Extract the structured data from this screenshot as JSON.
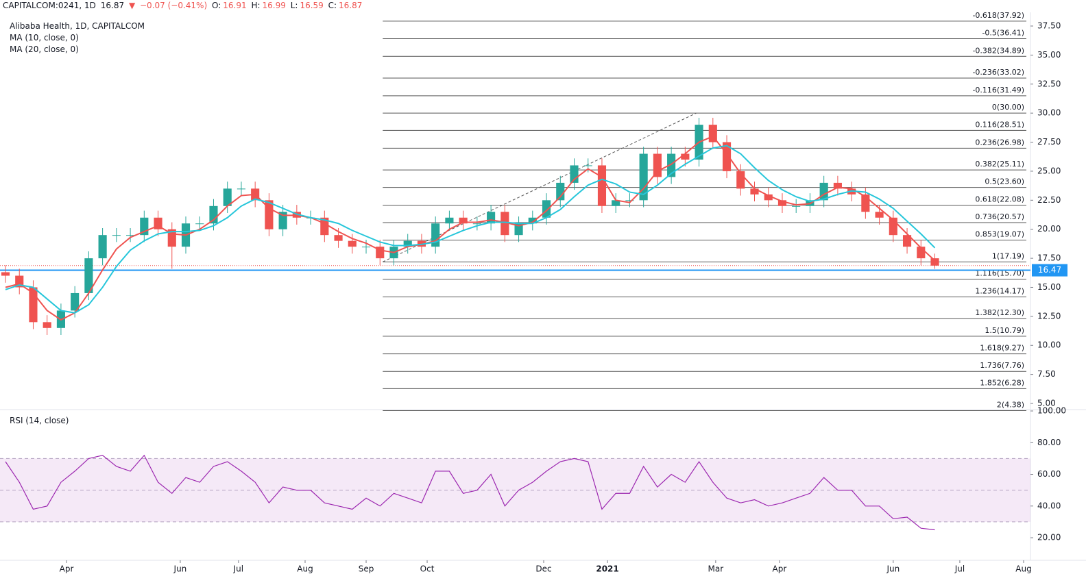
{
  "header": {
    "symbol": "CAPITALCOM:0241, 1D",
    "last": 16.87,
    "arrow": "▼",
    "change": "−0.07 (−0.41%)",
    "o_label": "O:",
    "open": 16.91,
    "h_label": "H:",
    "high": 16.99,
    "l_label": "L:",
    "low": 16.59,
    "c_label": "C:",
    "close": 16.87
  },
  "chart_data": [
    {
      "type": "candlestick",
      "title": "Alibaba Health, 1D, CAPITALCOM",
      "x": [
        0,
        5,
        10,
        15,
        20,
        25,
        30,
        35,
        40,
        45,
        50,
        55,
        60,
        65,
        70,
        75,
        80,
        85,
        90,
        95,
        100,
        105,
        110,
        115,
        120,
        125,
        130,
        135,
        140,
        145,
        150,
        155,
        160,
        165,
        170,
        175,
        180,
        185,
        190,
        195,
        200,
        205,
        210,
        215,
        220,
        225,
        230,
        235,
        240,
        245,
        250,
        255,
        260,
        265,
        270,
        275,
        280,
        285,
        290,
        295,
        300,
        305,
        310,
        315,
        320,
        325,
        330,
        335
      ],
      "open": [
        16.3,
        16.0,
        15.0,
        12.0,
        11.5,
        13.0,
        14.5,
        17.5,
        19.5,
        19.5,
        19.5,
        21.0,
        20.0,
        18.5,
        20.5,
        20.5,
        22.0,
        23.5,
        23.5,
        22.5,
        20.0,
        21.5,
        21.0,
        21.0,
        19.5,
        19.0,
        18.5,
        18.5,
        17.5,
        18.5,
        19.0,
        18.5,
        20.5,
        21.0,
        20.5,
        20.5,
        21.5,
        19.5,
        20.5,
        21.0,
        22.5,
        24.0,
        25.5,
        25.5,
        22.0,
        22.5,
        22.5,
        26.5,
        24.5,
        26.5,
        26.0,
        29.0,
        27.5,
        25.0,
        23.5,
        23.0,
        22.5,
        22.0,
        22.0,
        22.5,
        24.0,
        23.5,
        23.0,
        21.5,
        21.0,
        19.5,
        18.5,
        17.5
      ],
      "high": [
        16.9,
        16.6,
        15.6,
        12.6,
        13.6,
        15.1,
        18.1,
        20.1,
        20.1,
        20.1,
        21.6,
        21.6,
        20.6,
        21.1,
        21.1,
        22.6,
        24.1,
        24.1,
        24.1,
        23.1,
        22.1,
        22.1,
        21.6,
        21.6,
        20.1,
        19.6,
        19.1,
        19.1,
        19.1,
        19.6,
        19.6,
        21.1,
        21.6,
        21.6,
        21.1,
        22.1,
        22.1,
        21.1,
        21.6,
        23.1,
        24.6,
        26.1,
        26.1,
        26.1,
        23.1,
        23.1,
        27.1,
        27.1,
        27.1,
        27.1,
        29.6,
        29.6,
        28.1,
        25.6,
        24.1,
        23.6,
        23.1,
        22.6,
        23.1,
        24.6,
        24.6,
        24.1,
        23.6,
        22.1,
        21.6,
        20.1,
        19.1,
        17.9
      ],
      "low": [
        15.4,
        14.4,
        11.4,
        10.9,
        10.9,
        12.4,
        13.9,
        16.9,
        18.9,
        18.9,
        18.9,
        19.4,
        16.6,
        17.9,
        19.9,
        19.9,
        21.4,
        22.9,
        21.9,
        19.4,
        19.4,
        20.4,
        20.4,
        18.9,
        18.4,
        17.9,
        17.9,
        16.9,
        16.9,
        17.9,
        17.9,
        17.9,
        19.9,
        19.9,
        19.9,
        19.9,
        18.9,
        18.9,
        19.9,
        20.4,
        21.9,
        23.4,
        24.9,
        21.4,
        21.4,
        21.9,
        21.9,
        23.9,
        23.9,
        25.4,
        25.4,
        26.9,
        24.4,
        22.9,
        22.4,
        21.9,
        21.4,
        21.4,
        21.4,
        21.9,
        22.9,
        22.4,
        20.9,
        20.4,
        18.9,
        17.9,
        16.9,
        16.59
      ],
      "close": [
        16.0,
        15.0,
        12.0,
        11.5,
        13.0,
        14.5,
        17.5,
        19.5,
        19.5,
        19.5,
        21.0,
        20.0,
        18.5,
        20.5,
        20.5,
        22.0,
        23.5,
        23.5,
        22.5,
        20.0,
        21.5,
        21.0,
        21.0,
        19.5,
        19.0,
        18.5,
        18.5,
        17.5,
        18.5,
        19.0,
        18.5,
        20.5,
        21.0,
        20.5,
        20.5,
        21.5,
        19.5,
        20.5,
        21.0,
        22.5,
        24.0,
        25.5,
        25.5,
        22.0,
        22.5,
        22.5,
        26.5,
        24.5,
        26.5,
        26.0,
        29.0,
        27.5,
        25.0,
        23.5,
        23.0,
        22.5,
        22.0,
        22.0,
        22.5,
        24.0,
        23.5,
        23.0,
        21.5,
        21.0,
        19.5,
        18.5,
        17.5,
        16.87
      ],
      "up_color": "#26a69a",
      "down_color": "#ef5350",
      "series": [
        {
          "name": "MA (10, close, 0)",
          "color": "#ef5350",
          "values": [
            15.0,
            15.3,
            14.5,
            13.0,
            12.2,
            12.8,
            14.5,
            16.5,
            18.3,
            19.3,
            19.8,
            20.3,
            19.6,
            19.5,
            20.0,
            20.8,
            22.0,
            22.9,
            23.0,
            21.8,
            21.2,
            21.2,
            21.0,
            20.5,
            19.8,
            19.2,
            18.8,
            18.2,
            18.0,
            18.5,
            18.7,
            19.0,
            20.0,
            20.6,
            20.6,
            20.8,
            20.6,
            20.3,
            20.6,
            21.6,
            22.8,
            24.3,
            25.2,
            24.5,
            22.5,
            22.3,
            23.5,
            25.0,
            25.6,
            26.5,
            27.5,
            28.0,
            26.5,
            24.8,
            23.5,
            22.9,
            22.4,
            22.1,
            22.2,
            23.0,
            23.6,
            23.5,
            22.8,
            21.8,
            20.8,
            19.6,
            18.4,
            17.3
          ]
        },
        {
          "name": "MA (20, close, 0)",
          "color": "#26c6da",
          "values": [
            14.8,
            15.2,
            15.0,
            14.0,
            13.0,
            12.8,
            13.5,
            15.0,
            16.8,
            18.2,
            19.0,
            19.6,
            19.8,
            19.8,
            19.9,
            20.3,
            21.0,
            22.0,
            22.6,
            22.3,
            21.8,
            21.3,
            21.0,
            20.8,
            20.5,
            19.9,
            19.4,
            18.9,
            18.6,
            18.6,
            18.7,
            18.9,
            19.4,
            19.9,
            20.3,
            20.6,
            20.6,
            20.5,
            20.5,
            21.0,
            21.7,
            22.8,
            23.8,
            24.3,
            23.9,
            23.2,
            23.0,
            23.8,
            24.8,
            25.6,
            26.3,
            27.0,
            27.2,
            26.5,
            25.3,
            24.2,
            23.4,
            22.8,
            22.4,
            22.6,
            23.0,
            23.3,
            23.2,
            22.6,
            21.8,
            20.7,
            19.6,
            18.4
          ]
        }
      ],
      "xlim": [
        0,
        367
      ],
      "ylim": [
        4.47,
        38.68
      ],
      "yticks": [
        {
          "value": 37.5,
          "label": "37.50"
        },
        {
          "value": 35,
          "label": "35.00"
        },
        {
          "value": 32.5,
          "label": "32.50"
        },
        {
          "value": 30,
          "label": "30.00"
        },
        {
          "value": 27.5,
          "label": "27.50"
        },
        {
          "value": 25,
          "label": "25.00"
        },
        {
          "value": 22.5,
          "label": "22.50"
        },
        {
          "value": 20,
          "label": "20.00"
        },
        {
          "value": 17.5,
          "label": "17.50"
        },
        {
          "value": 15,
          "label": "15.00"
        },
        {
          "value": 12.5,
          "label": "12.50"
        },
        {
          "value": 10,
          "label": "10.00"
        },
        {
          "value": 7.5,
          "label": "7.50"
        },
        {
          "value": 5,
          "label": "5.00"
        }
      ],
      "fib_start": 136,
      "fib_levels": [
        {
          "value": 37.92,
          "label": "-0.618(37.92)"
        },
        {
          "value": 36.41,
          "label": "-0.5(36.41)"
        },
        {
          "value": 34.89,
          "label": "-0.382(34.89)"
        },
        {
          "value": 33.02,
          "label": "-0.236(33.02)"
        },
        {
          "value": 31.49,
          "label": "-0.116(31.49)"
        },
        {
          "value": 30.0,
          "label": "0(30.00)"
        },
        {
          "value": 28.51,
          "label": "0.116(28.51)"
        },
        {
          "value": 26.98,
          "label": "0.236(26.98)"
        },
        {
          "value": 25.11,
          "label": "0.382(25.11)"
        },
        {
          "value": 23.6,
          "label": "0.5(23.60)"
        },
        {
          "value": 22.08,
          "label": "0.618(22.08)"
        },
        {
          "value": 20.57,
          "label": "0.736(20.57)"
        },
        {
          "value": 19.07,
          "label": "0.853(19.07)"
        },
        {
          "value": 17.19,
          "label": "1(17.19)"
        },
        {
          "value": 15.7,
          "label": "1.116(15.70)"
        },
        {
          "value": 14.17,
          "label": "1.236(14.17)"
        },
        {
          "value": 12.3,
          "label": "1.382(12.30)"
        },
        {
          "value": 10.79,
          "label": "1.5(10.79)"
        },
        {
          "value": 9.27,
          "label": "1.618(9.27)"
        },
        {
          "value": 7.76,
          "label": "1.736(7.76)"
        },
        {
          "value": 6.28,
          "label": "1.852(6.28)"
        },
        {
          "value": 4.38,
          "label": "2(4.38)"
        }
      ],
      "trendline_x": [
        136,
        249
      ],
      "hline": 16.47,
      "hline_color": "#2196f3"
    },
    {
      "type": "line",
      "title": "RSI (14, close)",
      "color": "#9c27b0",
      "values": [
        68,
        55,
        38,
        40,
        55,
        62,
        70,
        72,
        65,
        62,
        72,
        55,
        48,
        58,
        55,
        65,
        68,
        62,
        55,
        42,
        52,
        50,
        50,
        42,
        40,
        38,
        45,
        40,
        48,
        45,
        42,
        62,
        62,
        48,
        50,
        60,
        40,
        50,
        55,
        62,
        68,
        70,
        68,
        38,
        48,
        48,
        65,
        52,
        60,
        55,
        68,
        55,
        45,
        42,
        44,
        40,
        42,
        45,
        48,
        58,
        50,
        50,
        40,
        40,
        32,
        33,
        26,
        25
      ],
      "ylim": [
        5.76,
        100.86
      ],
      "band": [
        30,
        70
      ],
      "midline": 50,
      "yticks": [
        {
          "value": 100,
          "label": "100.00"
        },
        {
          "value": 80,
          "label": "80.00"
        },
        {
          "value": 60,
          "label": "60.00"
        },
        {
          "value": 40,
          "label": "40.00"
        },
        {
          "value": 20,
          "label": "20.00"
        }
      ],
      "xticks": [
        {
          "value": 22,
          "label": "Apr"
        },
        {
          "value": 63,
          "label": "Jun"
        },
        {
          "value": 84,
          "label": "Jul"
        },
        {
          "value": 108,
          "label": "Aug"
        },
        {
          "value": 130,
          "label": "Sep"
        },
        {
          "value": 152,
          "label": "Oct"
        },
        {
          "value": 194,
          "label": "Dec"
        },
        {
          "value": 217,
          "label": "2021"
        },
        {
          "value": 256,
          "label": "Mar"
        },
        {
          "value": 279,
          "label": "Apr"
        },
        {
          "value": 320,
          "label": "Jun"
        },
        {
          "value": 344,
          "label": "Jul"
        },
        {
          "value": 367,
          "label": "Aug"
        }
      ]
    }
  ]
}
